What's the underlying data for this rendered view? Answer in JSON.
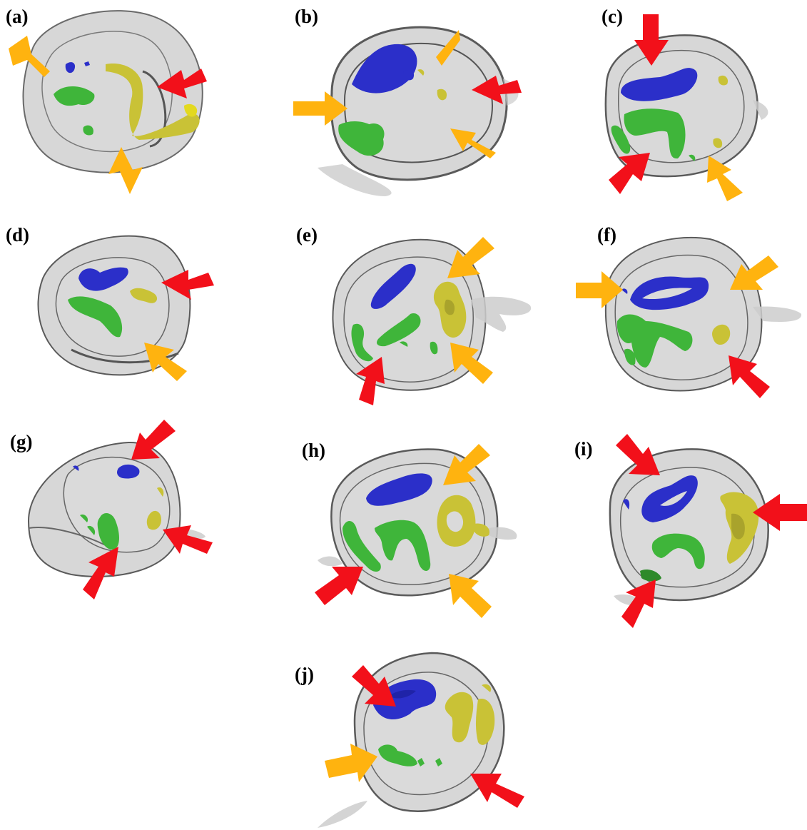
{
  "figure": {
    "panels": [
      {
        "id": "a",
        "label": "(a)"
      },
      {
        "id": "b",
        "label": "(b)"
      },
      {
        "id": "c",
        "label": "(c)"
      },
      {
        "id": "d",
        "label": "(d)"
      },
      {
        "id": "e",
        "label": "(e)"
      },
      {
        "id": "f",
        "label": "(f)"
      },
      {
        "id": "g",
        "label": "(g)"
      },
      {
        "id": "h",
        "label": "(h)"
      },
      {
        "id": "i",
        "label": "(i)"
      },
      {
        "id": "j",
        "label": "(j)"
      }
    ],
    "colors": {
      "shell": "#b9b9b9",
      "shell_edge": "#5a5a5a",
      "region_blue": "#2b2fc9",
      "region_green": "#3fb53a",
      "region_yellow": "#c9c236",
      "arrow_red": "#f2101a",
      "arrow_orange": "#ffb30f"
    }
  }
}
